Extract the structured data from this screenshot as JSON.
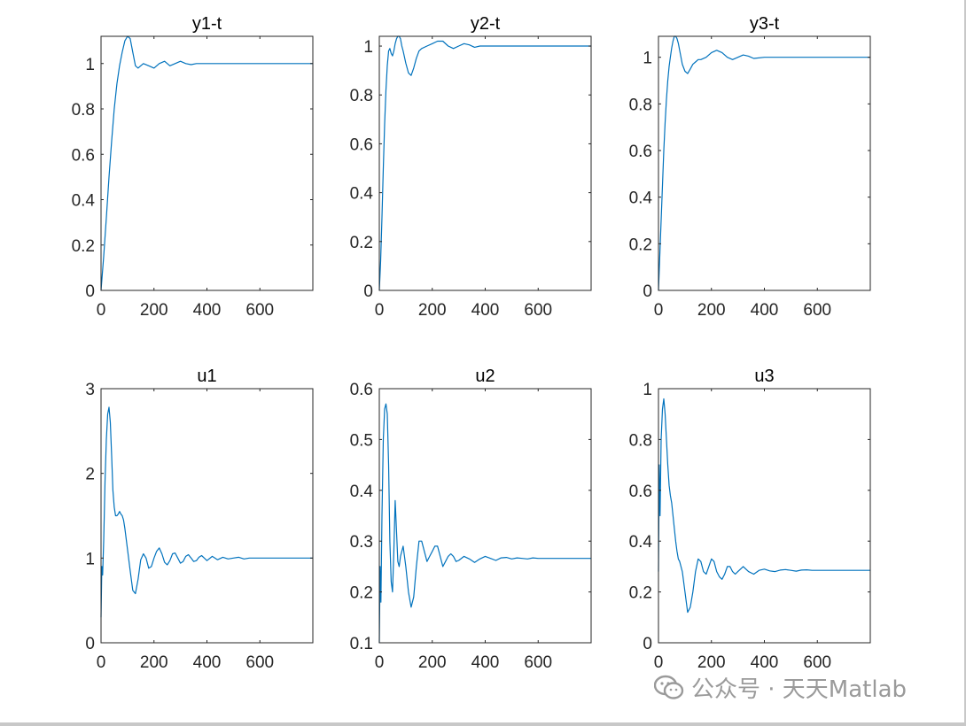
{
  "watermark": {
    "text": "公众号 · 天天Matlab",
    "icon": "wechat-icon"
  },
  "colors": {
    "line": "#0072BD",
    "axis": "#262626",
    "background": "#ffffff"
  },
  "chart_data": [
    {
      "type": "line",
      "title": "y1-t",
      "xlim": [
        0,
        800
      ],
      "ylim": [
        0,
        1.12
      ],
      "xticks": [
        0,
        200,
        400,
        600
      ],
      "yticks": [
        0,
        0.2,
        0.4,
        0.6,
        0.8,
        1
      ],
      "xtick_labels": [
        "0",
        "200",
        "400",
        "600"
      ],
      "ytick_labels": [
        "0",
        "0.2",
        "0.4",
        "0.6",
        "0.8",
        "1"
      ],
      "x": [
        0,
        10,
        20,
        30,
        40,
        50,
        60,
        70,
        80,
        90,
        100,
        110,
        120,
        130,
        140,
        150,
        160,
        180,
        200,
        220,
        240,
        260,
        280,
        300,
        320,
        340,
        360,
        400,
        450,
        500,
        550,
        600,
        650,
        700,
        750,
        800
      ],
      "y": [
        0,
        0.15,
        0.32,
        0.5,
        0.66,
        0.8,
        0.91,
        0.99,
        1.05,
        1.1,
        1.12,
        1.11,
        1.05,
        0.99,
        0.98,
        0.99,
        1.0,
        0.99,
        0.98,
        1.0,
        1.01,
        0.99,
        1.0,
        1.01,
        1.0,
        0.995,
        1.0,
        1.0,
        1.0,
        1.0,
        1.0,
        1.0,
        1.0,
        1.0,
        1.0,
        1.0
      ]
    },
    {
      "type": "line",
      "title": "y2-t",
      "xlim": [
        0,
        800
      ],
      "ylim": [
        0,
        1.04
      ],
      "xticks": [
        0,
        200,
        400,
        600
      ],
      "yticks": [
        0,
        0.2,
        0.4,
        0.6,
        0.8,
        1
      ],
      "xtick_labels": [
        "0",
        "200",
        "400",
        "600"
      ],
      "ytick_labels": [
        "0",
        "0.2",
        "0.4",
        "0.6",
        "0.8",
        "1"
      ],
      "x": [
        0,
        5,
        10,
        15,
        20,
        25,
        30,
        35,
        40,
        45,
        50,
        55,
        60,
        65,
        70,
        75,
        80,
        85,
        90,
        100,
        110,
        120,
        130,
        140,
        150,
        160,
        180,
        200,
        220,
        240,
        260,
        280,
        300,
        320,
        340,
        360,
        380,
        400,
        450,
        500,
        550,
        600,
        650,
        700,
        750,
        800
      ],
      "y": [
        0,
        0.12,
        0.3,
        0.5,
        0.68,
        0.82,
        0.92,
        0.98,
        0.99,
        0.97,
        0.96,
        0.98,
        1.01,
        1.03,
        1.04,
        1.04,
        1.03,
        1.0,
        0.98,
        0.93,
        0.89,
        0.88,
        0.91,
        0.95,
        0.98,
        0.99,
        1.0,
        1.01,
        1.02,
        1.02,
        1.0,
        0.99,
        1.0,
        1.01,
        1.005,
        0.995,
        1.0,
        1.0,
        1.0,
        1.0,
        1.0,
        1.0,
        1.0,
        1.0,
        1.0,
        1.0
      ]
    },
    {
      "type": "line",
      "title": "y3-t",
      "xlim": [
        0,
        800
      ],
      "ylim": [
        0,
        1.09
      ],
      "xticks": [
        0,
        200,
        400,
        600
      ],
      "yticks": [
        0,
        0.2,
        0.4,
        0.6,
        0.8,
        1
      ],
      "xtick_labels": [
        "0",
        "200",
        "400",
        "600"
      ],
      "ytick_labels": [
        "0",
        "0.2",
        "0.4",
        "0.6",
        "0.8",
        "1"
      ],
      "x": [
        0,
        5,
        10,
        15,
        20,
        25,
        30,
        35,
        40,
        45,
        50,
        55,
        60,
        65,
        70,
        75,
        80,
        85,
        90,
        100,
        110,
        120,
        130,
        140,
        150,
        160,
        180,
        200,
        220,
        240,
        260,
        280,
        300,
        320,
        340,
        360,
        400,
        450,
        500,
        550,
        600,
        650,
        700,
        750,
        800
      ],
      "y": [
        0,
        0.15,
        0.3,
        0.45,
        0.6,
        0.72,
        0.82,
        0.9,
        0.96,
        1.0,
        1.04,
        1.07,
        1.09,
        1.09,
        1.08,
        1.06,
        1.03,
        1.0,
        0.97,
        0.94,
        0.93,
        0.95,
        0.97,
        0.98,
        0.99,
        0.99,
        1.0,
        1.02,
        1.03,
        1.02,
        1.0,
        0.99,
        1.0,
        1.01,
        1.005,
        0.995,
        1.0,
        1.0,
        1.0,
        1.0,
        1.0,
        1.0,
        1.0,
        1.0,
        1.0
      ]
    },
    {
      "type": "line",
      "title": "u1",
      "xlim": [
        0,
        800
      ],
      "ylim": [
        0,
        3
      ],
      "xticks": [
        0,
        200,
        400,
        600
      ],
      "yticks": [
        0,
        1,
        2,
        3
      ],
      "xtick_labels": [
        "0",
        "200",
        "400",
        "600"
      ],
      "ytick_labels": [
        "0",
        "1",
        "2",
        "3"
      ],
      "x": [
        0,
        3,
        6,
        10,
        15,
        20,
        25,
        30,
        35,
        40,
        45,
        50,
        55,
        60,
        65,
        70,
        75,
        80,
        85,
        90,
        100,
        110,
        120,
        130,
        140,
        150,
        160,
        170,
        180,
        190,
        200,
        210,
        220,
        230,
        240,
        250,
        260,
        270,
        280,
        290,
        300,
        310,
        320,
        330,
        340,
        350,
        360,
        370,
        380,
        390,
        400,
        420,
        440,
        460,
        480,
        500,
        520,
        540,
        560,
        580,
        600,
        650,
        700,
        750,
        800
      ],
      "y": [
        0.3,
        0.9,
        0.8,
        1.2,
        1.9,
        2.4,
        2.7,
        2.78,
        2.6,
        2.2,
        1.8,
        1.6,
        1.5,
        1.5,
        1.52,
        1.55,
        1.52,
        1.5,
        1.45,
        1.35,
        1.1,
        0.85,
        0.62,
        0.58,
        0.75,
        0.98,
        1.05,
        1.0,
        0.88,
        0.9,
        1.0,
        1.08,
        1.12,
        1.05,
        0.95,
        0.92,
        0.97,
        1.05,
        1.06,
        1.0,
        0.94,
        0.96,
        1.02,
        1.04,
        1.0,
        0.96,
        0.97,
        1.01,
        1.03,
        1.0,
        0.97,
        1.02,
        0.98,
        1.01,
        0.99,
        1.0,
        1.01,
        0.99,
        1.0,
        1.0,
        1.0,
        1.0,
        1.0,
        1.0,
        1.0
      ]
    },
    {
      "type": "line",
      "title": "u2",
      "xlim": [
        0,
        800
      ],
      "ylim": [
        0.1,
        0.6
      ],
      "xticks": [
        0,
        200,
        400,
        600
      ],
      "yticks": [
        0.1,
        0.2,
        0.3,
        0.4,
        0.5,
        0.6
      ],
      "xtick_labels": [
        "0",
        "200",
        "400",
        "600"
      ],
      "ytick_labels": [
        "0.1",
        "0.2",
        "0.3",
        "0.4",
        "0.5",
        "0.6"
      ],
      "x": [
        0,
        3,
        6,
        10,
        15,
        20,
        25,
        30,
        35,
        40,
        45,
        50,
        55,
        60,
        65,
        70,
        75,
        80,
        90,
        100,
        110,
        120,
        130,
        140,
        150,
        160,
        170,
        180,
        190,
        200,
        210,
        220,
        230,
        240,
        250,
        260,
        270,
        280,
        290,
        300,
        320,
        340,
        360,
        380,
        400,
        420,
        440,
        460,
        480,
        500,
        520,
        540,
        560,
        580,
        600,
        650,
        700,
        750,
        800
      ],
      "y": [
        0.1,
        0.25,
        0.18,
        0.35,
        0.5,
        0.56,
        0.57,
        0.55,
        0.45,
        0.3,
        0.22,
        0.2,
        0.28,
        0.38,
        0.32,
        0.26,
        0.25,
        0.27,
        0.29,
        0.25,
        0.2,
        0.17,
        0.19,
        0.25,
        0.3,
        0.3,
        0.28,
        0.26,
        0.27,
        0.28,
        0.29,
        0.29,
        0.27,
        0.25,
        0.26,
        0.27,
        0.275,
        0.27,
        0.26,
        0.262,
        0.27,
        0.265,
        0.258,
        0.265,
        0.27,
        0.266,
        0.262,
        0.267,
        0.268,
        0.265,
        0.267,
        0.266,
        0.265,
        0.267,
        0.266,
        0.266,
        0.266,
        0.266,
        0.266
      ]
    },
    {
      "type": "line",
      "title": "u3",
      "xlim": [
        0,
        800
      ],
      "ylim": [
        0,
        1
      ],
      "xticks": [
        0,
        200,
        400,
        600
      ],
      "yticks": [
        0,
        0.2,
        0.4,
        0.6,
        0.8,
        1
      ],
      "xtick_labels": [
        "0",
        "200",
        "400",
        "600"
      ],
      "ytick_labels": [
        "0",
        "0.2",
        "0.4",
        "0.6",
        "0.8",
        "1"
      ],
      "x": [
        0,
        3,
        6,
        10,
        15,
        20,
        25,
        30,
        35,
        40,
        45,
        50,
        55,
        60,
        65,
        70,
        75,
        80,
        90,
        100,
        110,
        120,
        130,
        140,
        150,
        160,
        170,
        180,
        190,
        200,
        210,
        220,
        230,
        240,
        250,
        260,
        270,
        280,
        290,
        300,
        320,
        340,
        360,
        380,
        400,
        420,
        440,
        460,
        480,
        500,
        520,
        540,
        560,
        580,
        600,
        650,
        700,
        750,
        800
      ],
      "y": [
        0.28,
        0.7,
        0.5,
        0.8,
        0.92,
        0.96,
        0.9,
        0.8,
        0.7,
        0.62,
        0.58,
        0.55,
        0.5,
        0.45,
        0.4,
        0.36,
        0.33,
        0.32,
        0.28,
        0.2,
        0.12,
        0.14,
        0.2,
        0.28,
        0.33,
        0.32,
        0.28,
        0.27,
        0.3,
        0.33,
        0.32,
        0.28,
        0.26,
        0.25,
        0.27,
        0.3,
        0.3,
        0.28,
        0.27,
        0.28,
        0.3,
        0.28,
        0.27,
        0.285,
        0.29,
        0.283,
        0.28,
        0.286,
        0.288,
        0.285,
        0.282,
        0.286,
        0.287,
        0.285,
        0.285,
        0.285,
        0.285,
        0.285,
        0.285
      ]
    }
  ]
}
